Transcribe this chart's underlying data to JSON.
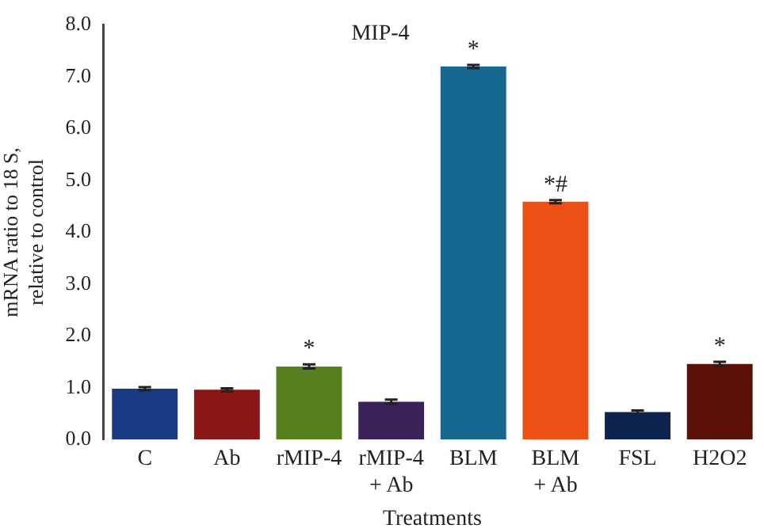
{
  "chart_data": {
    "type": "bar",
    "title": "MIP-4",
    "xlabel": "Treatments",
    "ylabel": "mRNA ratio to 18 S,\nrelative to control",
    "categories": [
      "C",
      "Ab",
      "rMIP-4",
      "rMIP-4\n+ Ab",
      "BLM",
      "BLM\n+ Ab",
      "FSL",
      "H2O2"
    ],
    "values": [
      0.98,
      0.96,
      1.41,
      0.73,
      7.2,
      4.59,
      0.53,
      1.46
    ],
    "errors": [
      0.03,
      0.03,
      0.04,
      0.04,
      0.03,
      0.03,
      0.03,
      0.04
    ],
    "colors": [
      "#1a3a84",
      "#8a1616",
      "#56801e",
      "#3a2158",
      "#176890",
      "#ec5014",
      "#0d2350",
      "#5a1208"
    ],
    "ylim": [
      0,
      8
    ],
    "yticks": [
      {
        "value": 0,
        "label": "0.0"
      },
      {
        "value": 1,
        "label": "1.0"
      },
      {
        "value": 2,
        "label": "2.0"
      },
      {
        "value": 3,
        "label": "3.0"
      },
      {
        "value": 4,
        "label": "4.0"
      },
      {
        "value": 5,
        "label": "5.0"
      },
      {
        "value": 6,
        "label": "6.0"
      },
      {
        "value": 7,
        "label": "7.0"
      },
      {
        "value": 8,
        "label": "8.0"
      }
    ],
    "annotations": [
      {
        "text": "*",
        "x": "rMIP-4",
        "y": 1.41
      },
      {
        "text": "*",
        "x": "BLM",
        "y": 7.2
      },
      {
        "text": "*#",
        "x": "BLM\n+ Ab",
        "y": 4.59
      },
      {
        "text": "*",
        "x": "H2O2",
        "y": 1.46
      }
    ],
    "grid": false,
    "legend": false
  }
}
